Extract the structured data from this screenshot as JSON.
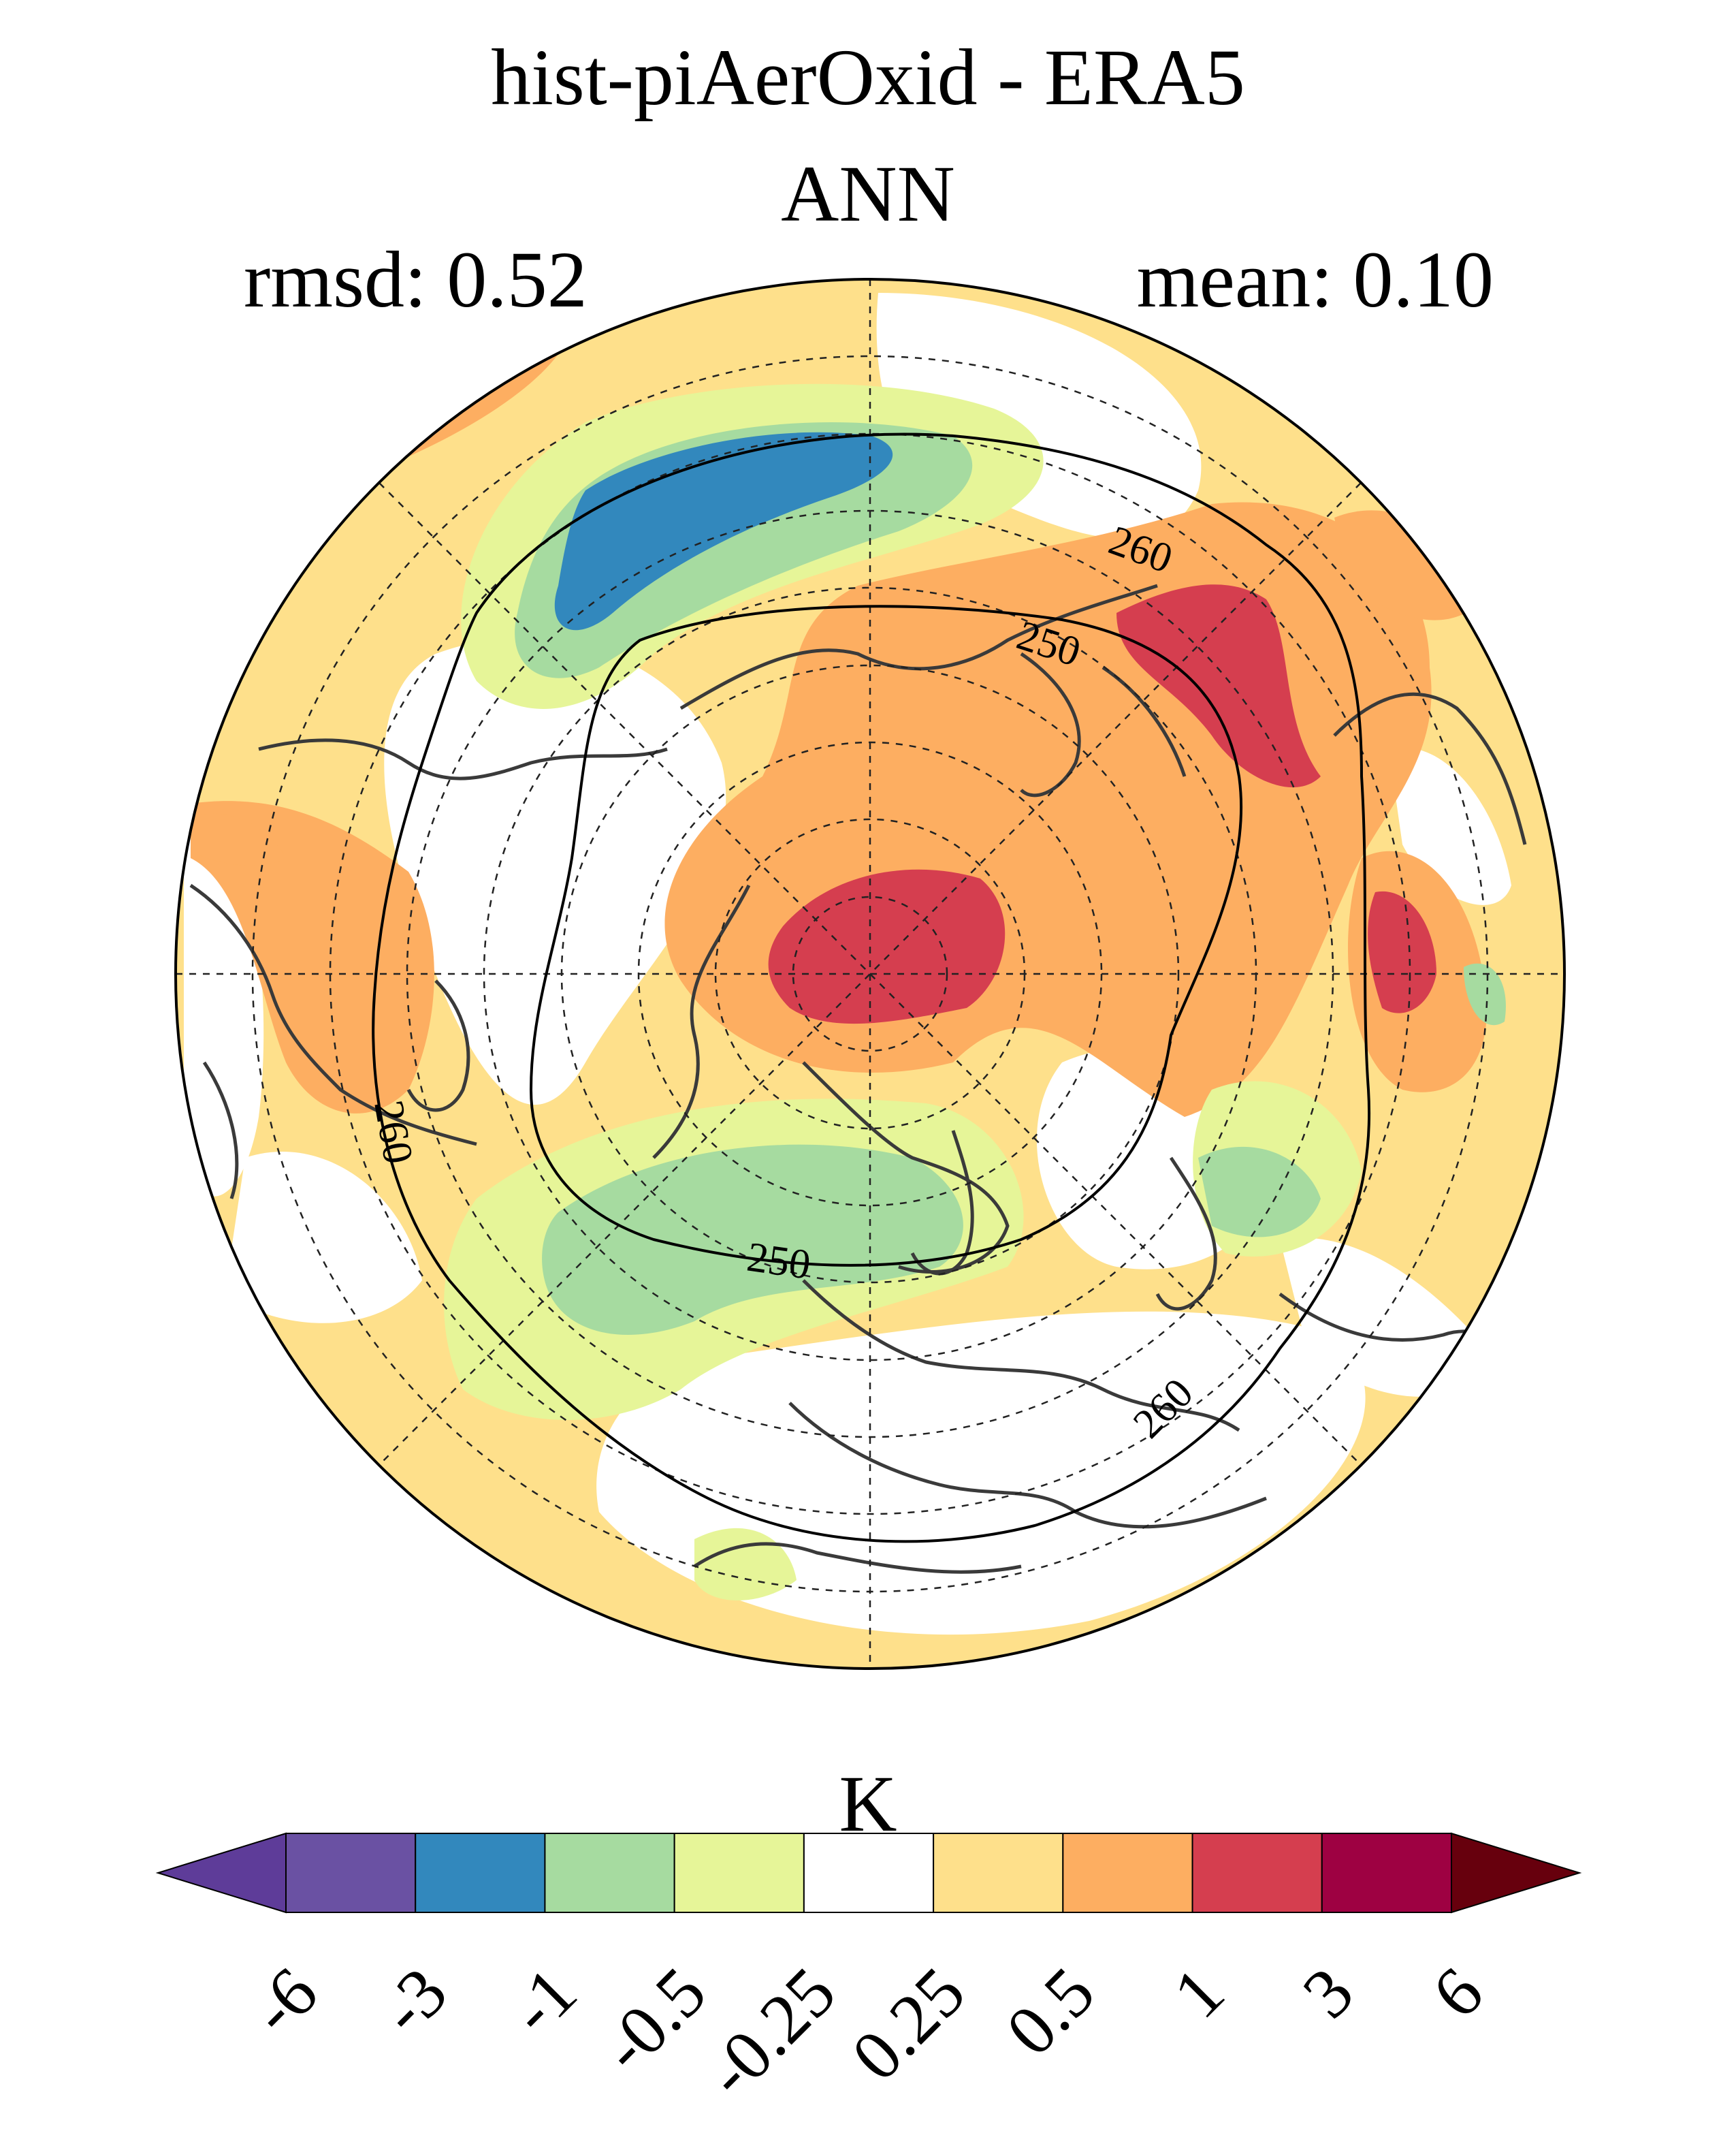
{
  "title": "hist-piAerOxid - ERA5",
  "season": "ANN",
  "rmsd_text": "rmsd: 0.52",
  "mean_text": "mean: 0.10",
  "colorbar": {
    "unit": "K",
    "ticks": [
      "-6",
      "-3",
      "-1",
      "-0.5",
      "-0.25",
      "0.25",
      "0.5",
      "1",
      "3",
      "6"
    ],
    "colors": [
      "#5e3c99",
      "#6a51a3",
      "#3288bd",
      "#a6dba0",
      "#e6f598",
      "#ffffff",
      "#fee08b",
      "#fdae61",
      "#d53e4f",
      "#9e0142",
      "#67000d"
    ]
  },
  "map": {
    "projection": "north-polar-stereographic",
    "contour_labels": [
      "260",
      "250",
      "260",
      "250",
      "260"
    ],
    "icons": {
      "coastlines": "coastline-lines",
      "gridlines": "dashed-graticule"
    }
  }
}
